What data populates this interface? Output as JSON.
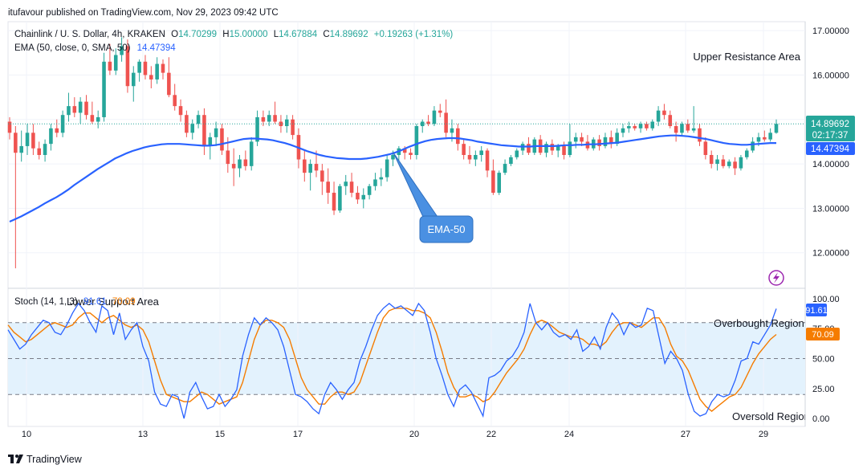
{
  "publisher_line": "itufavour published on TradingView.com, Nov 29, 2023 09:42 UTC",
  "legend": {
    "symbol_text": "Chainlink / U. S. Dollar, 4h, KRAKEN",
    "o_label": "O",
    "o_value": "14.70299",
    "h_label": "H",
    "h_value": "15.00000",
    "l_label": "L",
    "l_value": "14.67884",
    "c_label": "C",
    "c_value": "14.89692",
    "change": "+0.19263 (+1.31%)",
    "ema_label": "EMA (50, close, 0, SMA, 50)",
    "ema_value": "14.47394"
  },
  "annotations": {
    "upper_resistance": "Upper Resistance Area",
    "lower_support": "Lower Support Area",
    "ema_callout": "EMA-50",
    "overbought": "Overbought Region",
    "oversold": "Oversold Region"
  },
  "price_tag": {
    "price": "14.89692",
    "countdown": "02:17:37"
  },
  "ema_tag": "14.47394",
  "stoch": {
    "label": "Stoch (14, 1, 3)",
    "k_value": "91.61",
    "d_value": "70.09",
    "k_tag": "91.61",
    "d_tag": "70.09"
  },
  "footer": {
    "brand": "TradingView"
  },
  "colors": {
    "up": "#26a69a",
    "down": "#ef5350",
    "ema": "#2962ff",
    "stoch_k": "#2962ff",
    "stoch_d": "#f57c00",
    "band": "#e3f2fd",
    "callout": "#4a90e2",
    "lightning": "#9c27b0"
  },
  "chart_data": [
    {
      "type": "candlestick",
      "title": "Chainlink / U. S. Dollar, 4h, KRAKEN",
      "x_ticks": [
        "10",
        "13",
        "15",
        "17",
        "20",
        "22",
        "24",
        "27",
        "29"
      ],
      "y_ticks": [
        "17.00000",
        "16.00000",
        "15.00000",
        "14.00000",
        "13.00000",
        "12.00000"
      ],
      "ylim": [
        11.2,
        17.2
      ],
      "grid": true,
      "ohlc": [
        [
          14.95,
          15.05,
          14.55,
          14.7
        ],
        [
          14.7,
          14.85,
          11.65,
          14.25
        ],
        [
          14.25,
          14.75,
          14.05,
          14.4
        ],
        [
          14.4,
          14.9,
          14.2,
          14.7
        ],
        [
          14.7,
          14.9,
          14.2,
          14.35
        ],
        [
          14.35,
          14.5,
          14.1,
          14.2
        ],
        [
          14.2,
          14.55,
          14.05,
          14.45
        ],
        [
          14.45,
          14.9,
          14.3,
          14.8
        ],
        [
          14.8,
          15.0,
          14.6,
          14.7
        ],
        [
          14.7,
          15.2,
          14.6,
          15.1
        ],
        [
          15.1,
          15.6,
          14.95,
          15.3
        ],
        [
          15.3,
          15.5,
          15.05,
          15.15
        ],
        [
          15.15,
          15.5,
          14.9,
          15.4
        ],
        [
          15.4,
          15.55,
          15.0,
          15.1
        ],
        [
          15.1,
          15.4,
          14.9,
          14.95
        ],
        [
          14.95,
          15.2,
          14.8,
          15.05
        ],
        [
          15.05,
          16.5,
          14.95,
          16.3
        ],
        [
          16.3,
          16.7,
          16.0,
          16.1
        ],
        [
          16.1,
          16.6,
          16.0,
          16.45
        ],
        [
          16.45,
          16.85,
          16.3,
          16.65
        ],
        [
          16.65,
          16.8,
          15.6,
          15.75
        ],
        [
          15.75,
          16.2,
          15.4,
          16.05
        ],
        [
          16.05,
          16.35,
          15.85,
          16.3
        ],
        [
          16.3,
          16.45,
          15.9,
          16.0
        ],
        [
          16.0,
          16.2,
          15.7,
          15.9
        ],
        [
          15.9,
          16.4,
          15.8,
          16.25
        ],
        [
          16.25,
          16.35,
          15.9,
          16.05
        ],
        [
          16.05,
          16.4,
          15.5,
          15.55
        ],
        [
          15.55,
          15.8,
          15.2,
          15.3
        ],
        [
          15.3,
          15.45,
          14.95,
          15.1
        ],
        [
          15.1,
          15.2,
          14.6,
          14.7
        ],
        [
          14.7,
          15.0,
          14.55,
          14.9
        ],
        [
          14.9,
          15.2,
          14.8,
          15.1
        ],
        [
          15.1,
          15.25,
          14.2,
          14.4
        ],
        [
          14.4,
          14.7,
          14.1,
          14.6
        ],
        [
          14.6,
          14.95,
          14.4,
          14.8
        ],
        [
          14.8,
          14.9,
          14.2,
          14.3
        ],
        [
          14.3,
          14.6,
          13.8,
          14.0
        ],
        [
          14.0,
          14.35,
          13.5,
          13.9
        ],
        [
          13.9,
          14.2,
          13.7,
          14.1
        ],
        [
          14.1,
          14.3,
          13.85,
          13.95
        ],
        [
          13.95,
          14.6,
          13.85,
          14.5
        ],
        [
          14.5,
          15.2,
          14.4,
          15.05
        ],
        [
          15.05,
          15.2,
          14.85,
          14.95
        ],
        [
          14.95,
          15.2,
          14.85,
          15.1
        ],
        [
          15.1,
          15.4,
          14.9,
          14.95
        ],
        [
          14.95,
          15.1,
          14.7,
          14.85
        ],
        [
          14.85,
          15.1,
          14.7,
          15.0
        ],
        [
          15.0,
          15.1,
          14.55,
          14.65
        ],
        [
          14.65,
          14.8,
          13.9,
          14.1
        ],
        [
          14.1,
          14.3,
          13.6,
          13.8
        ],
        [
          13.8,
          14.1,
          13.4,
          14.0
        ],
        [
          14.0,
          14.3,
          13.7,
          13.85
        ],
        [
          13.85,
          14.0,
          13.3,
          13.6
        ],
        [
          13.6,
          13.9,
          13.1,
          13.35
        ],
        [
          13.35,
          13.6,
          12.85,
          12.95
        ],
        [
          12.95,
          13.55,
          12.9,
          13.5
        ],
        [
          13.5,
          13.75,
          13.3,
          13.6
        ],
        [
          13.6,
          13.8,
          13.25,
          13.35
        ],
        [
          13.35,
          13.5,
          13.1,
          13.2
        ],
        [
          13.2,
          13.45,
          13.0,
          13.3
        ],
        [
          13.3,
          13.55,
          13.2,
          13.5
        ],
        [
          13.5,
          13.8,
          13.4,
          13.65
        ],
        [
          13.65,
          13.9,
          13.5,
          13.7
        ],
        [
          13.7,
          14.2,
          13.6,
          14.1
        ],
        [
          14.1,
          14.3,
          13.95,
          14.2
        ],
        [
          14.2,
          14.4,
          14.05,
          14.35
        ],
        [
          14.35,
          14.4,
          14.1,
          14.25
        ],
        [
          14.25,
          14.35,
          14.1,
          14.2
        ],
        [
          14.2,
          14.9,
          14.1,
          14.85
        ],
        [
          14.85,
          15.0,
          14.7,
          14.95
        ],
        [
          14.95,
          15.1,
          14.85,
          14.9
        ],
        [
          14.9,
          15.3,
          14.85,
          15.2
        ],
        [
          15.2,
          15.35,
          15.05,
          15.15
        ],
        [
          15.15,
          15.45,
          14.6,
          14.7
        ],
        [
          14.7,
          15.0,
          14.5,
          14.8
        ],
        [
          14.8,
          14.9,
          14.3,
          14.45
        ],
        [
          14.45,
          14.55,
          14.1,
          14.2
        ],
        [
          14.2,
          14.4,
          14.0,
          14.1
        ],
        [
          14.1,
          14.3,
          13.95,
          14.2
        ],
        [
          14.2,
          14.4,
          14.05,
          14.3
        ],
        [
          14.3,
          14.35,
          13.7,
          13.85
        ],
        [
          13.85,
          14.1,
          13.3,
          13.35
        ],
        [
          13.35,
          13.85,
          13.3,
          13.8
        ],
        [
          13.8,
          14.1,
          13.75,
          14.0
        ],
        [
          14.0,
          14.2,
          13.95,
          14.15
        ],
        [
          14.15,
          14.35,
          14.1,
          14.3
        ],
        [
          14.3,
          14.5,
          14.2,
          14.45
        ],
        [
          14.45,
          14.6,
          14.2,
          14.25
        ],
        [
          14.25,
          14.6,
          14.2,
          14.55
        ],
        [
          14.55,
          14.65,
          14.2,
          14.25
        ],
        [
          14.25,
          14.5,
          14.15,
          14.45
        ],
        [
          14.45,
          14.55,
          14.2,
          14.3
        ],
        [
          14.3,
          14.45,
          14.15,
          14.4
        ],
        [
          14.4,
          14.5,
          14.1,
          14.2
        ],
        [
          14.2,
          14.9,
          14.15,
          14.5
        ],
        [
          14.5,
          14.7,
          14.35,
          14.6
        ],
        [
          14.6,
          14.7,
          14.4,
          14.5
        ],
        [
          14.5,
          14.65,
          14.3,
          14.35
        ],
        [
          14.35,
          14.6,
          14.3,
          14.55
        ],
        [
          14.55,
          14.65,
          14.3,
          14.4
        ],
        [
          14.4,
          14.7,
          14.35,
          14.6
        ],
        [
          14.6,
          14.75,
          14.35,
          14.45
        ],
        [
          14.45,
          14.8,
          14.4,
          14.7
        ],
        [
          14.7,
          14.9,
          14.6,
          14.8
        ],
        [
          14.8,
          14.95,
          14.7,
          14.85
        ],
        [
          14.85,
          14.9,
          14.75,
          14.8
        ],
        [
          14.8,
          14.95,
          14.7,
          14.9
        ],
        [
          14.9,
          14.95,
          14.75,
          14.8
        ],
        [
          14.8,
          15.0,
          14.75,
          14.95
        ],
        [
          14.95,
          15.3,
          14.85,
          15.2
        ],
        [
          15.2,
          15.35,
          15.0,
          15.1
        ],
        [
          15.1,
          15.2,
          14.8,
          14.85
        ],
        [
          14.85,
          14.95,
          14.5,
          14.7
        ],
        [
          14.7,
          14.95,
          14.65,
          14.9
        ],
        [
          14.9,
          15.0,
          14.7,
          14.75
        ],
        [
          14.75,
          15.3,
          14.7,
          14.8
        ],
        [
          14.8,
          14.9,
          14.4,
          14.5
        ],
        [
          14.5,
          14.6,
          14.1,
          14.2
        ],
        [
          14.2,
          14.3,
          13.9,
          14.0
        ],
        [
          14.0,
          14.2,
          13.85,
          14.1
        ],
        [
          14.1,
          14.2,
          13.9,
          13.95
        ],
        [
          13.95,
          14.1,
          13.9,
          14.05
        ],
        [
          14.05,
          14.15,
          13.75,
          13.9
        ],
        [
          13.9,
          14.2,
          13.85,
          14.15
        ],
        [
          14.15,
          14.35,
          14.1,
          14.3
        ],
        [
          14.3,
          14.6,
          14.25,
          14.5
        ],
        [
          14.5,
          14.7,
          14.4,
          14.6
        ],
        [
          14.6,
          14.75,
          14.5,
          14.55
        ],
        [
          14.55,
          14.8,
          14.5,
          14.7
        ],
        [
          14.7,
          15.0,
          14.68,
          14.9
        ]
      ],
      "ema_50": [
        12.7,
        12.76,
        12.82,
        12.89,
        12.96,
        13.03,
        13.11,
        13.18,
        13.25,
        13.33,
        13.42,
        13.52,
        13.61,
        13.7,
        13.79,
        13.88,
        13.96,
        14.04,
        14.12,
        14.18,
        14.24,
        14.29,
        14.33,
        14.37,
        14.4,
        14.42,
        14.44,
        14.45,
        14.45,
        14.45,
        14.44,
        14.43,
        14.42,
        14.41,
        14.41,
        14.42,
        14.44,
        14.47,
        14.5,
        14.53,
        14.56,
        14.57,
        14.57,
        14.56,
        14.55,
        14.53,
        14.5,
        14.47,
        14.43,
        14.38,
        14.33,
        14.28,
        14.24,
        14.2,
        14.17,
        14.15,
        14.13,
        14.12,
        14.11,
        14.11,
        14.11,
        14.12,
        14.14,
        14.16,
        14.19,
        14.22,
        14.26,
        14.31,
        14.37,
        14.42,
        14.47,
        14.51,
        14.54,
        14.56,
        14.57,
        14.58,
        14.58,
        14.57,
        14.55,
        14.53,
        14.5,
        14.48,
        14.46,
        14.44,
        14.42,
        14.41,
        14.4,
        14.39,
        14.39,
        14.39,
        14.4,
        14.4,
        14.4,
        14.4,
        14.41,
        14.42,
        14.42,
        14.43,
        14.43,
        14.44,
        14.44,
        14.45,
        14.46,
        14.47,
        14.48,
        14.5,
        14.52,
        14.54,
        14.56,
        14.58,
        14.6,
        14.62,
        14.63,
        14.64,
        14.64,
        14.63,
        14.62,
        14.6,
        14.58,
        14.56,
        14.53,
        14.5,
        14.47,
        14.45,
        14.44,
        14.43,
        14.43,
        14.44,
        14.45,
        14.46,
        14.47,
        14.47
      ]
    },
    {
      "type": "line",
      "title": "Stoch (14, 1, 3)",
      "y_ticks": [
        "100.00",
        "75.00",
        "50.00",
        "25.00",
        "0.00"
      ],
      "ylim": [
        -6,
        108
      ],
      "levels": [
        80,
        50,
        20
      ],
      "series": [
        {
          "values": [
            74,
            66,
            58,
            62,
            70,
            76,
            82,
            80,
            72,
            70,
            78,
            88,
            96,
            90,
            80,
            72,
            94,
            90,
            70,
            88,
            66,
            74,
            80,
            60,
            48,
            22,
            12,
            10,
            20,
            18,
            0,
            22,
            30,
            18,
            8,
            10,
            20,
            10,
            16,
            24,
            52,
            70,
            84,
            78,
            84,
            80,
            74,
            60,
            40,
            20,
            18,
            14,
            8,
            4,
            20,
            30,
            24,
            16,
            24,
            30,
            48,
            60,
            74,
            86,
            92,
            96,
            92,
            94,
            90,
            86,
            96,
            90,
            72,
            50,
            36,
            20,
            10,
            24,
            28,
            22,
            12,
            2,
            34,
            36,
            40,
            48,
            52,
            60,
            72,
            96,
            80,
            74,
            80,
            72,
            68,
            70,
            66,
            74,
            56,
            60,
            68,
            58,
            76,
            88,
            82,
            70,
            80,
            76,
            78,
            92,
            90,
            68,
            46,
            56,
            50,
            40,
            20,
            6,
            2,
            4,
            14,
            20,
            18,
            20,
            32,
            48,
            50,
            64,
            62,
            70,
            78,
            91.61
          ]
        },
        {
          "values": [
            78,
            72,
            68,
            64,
            66,
            70,
            74,
            78,
            80,
            78,
            76,
            78,
            84,
            88,
            88,
            84,
            80,
            84,
            86,
            82,
            78,
            76,
            78,
            74,
            64,
            48,
            32,
            20,
            18,
            16,
            14,
            14,
            18,
            22,
            20,
            16,
            12,
            14,
            16,
            18,
            30,
            48,
            66,
            78,
            82,
            82,
            80,
            76,
            66,
            50,
            34,
            24,
            18,
            12,
            12,
            18,
            22,
            22,
            20,
            22,
            30,
            44,
            58,
            72,
            84,
            90,
            92,
            92,
            92,
            90,
            90,
            88,
            84,
            72,
            56,
            38,
            26,
            18,
            18,
            20,
            18,
            14,
            16,
            22,
            30,
            38,
            44,
            50,
            58,
            70,
            80,
            82,
            80,
            76,
            72,
            70,
            68,
            68,
            66,
            62,
            62,
            60,
            64,
            72,
            78,
            80,
            80,
            78,
            76,
            80,
            84,
            84,
            76,
            62,
            52,
            48,
            40,
            28,
            16,
            10,
            6,
            10,
            14,
            18,
            20,
            26,
            36,
            46,
            54,
            60,
            66,
            70.09
          ]
        }
      ]
    }
  ]
}
